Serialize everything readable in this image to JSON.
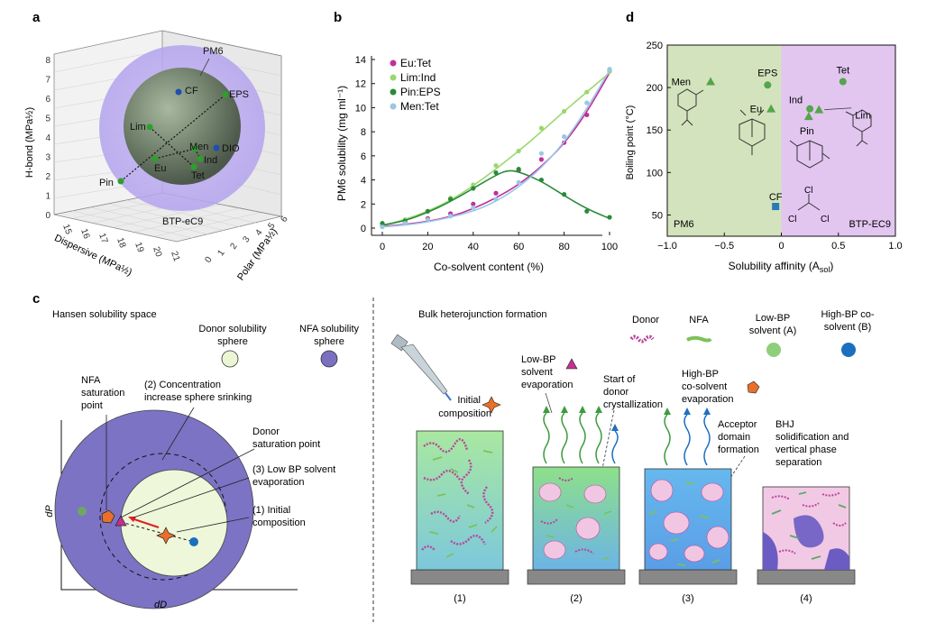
{
  "panels": {
    "a": "a",
    "b": "b",
    "c": "c",
    "d": "d"
  },
  "panel_a": {
    "zlabel": "H-bond (MPa½)",
    "xlabel": "Dispersive (MPa½)",
    "ylabel": "Polar (MPa½)",
    "z_ticks": [
      "0",
      "1",
      "2",
      "3",
      "4",
      "5",
      "6",
      "7",
      "8"
    ],
    "x_ticks": [
      "15",
      "16",
      "17",
      "18",
      "19",
      "20",
      "21"
    ],
    "y_ticks": [
      "0",
      "1",
      "2",
      "3",
      "4",
      "5",
      "6"
    ],
    "labels": {
      "pm6": "PM6",
      "btp": "BTP-eC9",
      "cf": "CF",
      "eps": "EPS",
      "lim": "Lim",
      "men": "Men",
      "dio": "DIO",
      "ind": "Ind",
      "eu": "Eu",
      "tet": "Tet",
      "pin": "Pin"
    }
  },
  "chart_data": {
    "type": "scatter",
    "title": "",
    "xlabel": "Co-solvent content (%)",
    "ylabel": "PM6 solubility (mg ml⁻¹)",
    "xlim": [
      0,
      100
    ],
    "ylim": [
      0,
      14
    ],
    "x_ticks": [
      "0",
      "20",
      "40",
      "60",
      "80",
      "100"
    ],
    "y_ticks": [
      "0",
      "2",
      "4",
      "6",
      "8",
      "10",
      "12",
      "14"
    ],
    "legend_position": "top-left",
    "series": [
      {
        "name": "Eu:Tet",
        "color": "#c0309a",
        "points": [
          [
            0,
            0.2
          ],
          [
            10,
            0.5
          ],
          [
            20,
            0.8
          ],
          [
            30,
            1.2
          ],
          [
            40,
            2.0
          ],
          [
            50,
            2.9
          ],
          [
            60,
            4.8
          ],
          [
            70,
            5.7
          ],
          [
            80,
            7.1
          ],
          [
            90,
            9.4
          ],
          [
            100,
            13.1
          ]
        ],
        "fit": [
          [
            0,
            0.15
          ],
          [
            10,
            0.3
          ],
          [
            20,
            0.55
          ],
          [
            30,
            0.95
          ],
          [
            40,
            1.6
          ],
          [
            50,
            2.5
          ],
          [
            60,
            3.6
          ],
          [
            70,
            5.1
          ],
          [
            80,
            7.0
          ],
          [
            90,
            9.6
          ],
          [
            100,
            12.9
          ]
        ]
      },
      {
        "name": "Lim:Ind",
        "color": "#9ad86e",
        "points": [
          [
            0,
            0.3
          ],
          [
            10,
            0.7
          ],
          [
            20,
            1.4
          ],
          [
            30,
            2.5
          ],
          [
            40,
            3.6
          ],
          [
            50,
            5.2
          ],
          [
            60,
            6.4
          ],
          [
            70,
            8.3
          ],
          [
            80,
            9.7
          ],
          [
            90,
            11.3
          ],
          [
            100,
            13.0
          ]
        ],
        "fit": [
          [
            0,
            0.2
          ],
          [
            10,
            0.7
          ],
          [
            20,
            1.4
          ],
          [
            30,
            2.3
          ],
          [
            40,
            3.5
          ],
          [
            50,
            4.9
          ],
          [
            60,
            6.4
          ],
          [
            70,
            8.0
          ],
          [
            80,
            9.7
          ],
          [
            90,
            11.3
          ],
          [
            100,
            12.9
          ]
        ]
      },
      {
        "name": "Pin:EPS",
        "color": "#2a8a3a",
        "points": [
          [
            0,
            0.4
          ],
          [
            10,
            0.6
          ],
          [
            20,
            1.4
          ],
          [
            30,
            2.4
          ],
          [
            40,
            3.3
          ],
          [
            50,
            4.6
          ],
          [
            60,
            4.9
          ],
          [
            70,
            4.0
          ],
          [
            80,
            2.8
          ],
          [
            90,
            1.4
          ],
          [
            100,
            0.9
          ]
        ],
        "fit": [
          [
            0,
            0.25
          ],
          [
            10,
            0.6
          ],
          [
            20,
            1.3
          ],
          [
            30,
            2.2
          ],
          [
            40,
            3.3
          ],
          [
            50,
            4.4
          ],
          [
            55,
            4.8
          ],
          [
            60,
            4.7
          ],
          [
            70,
            3.9
          ],
          [
            80,
            2.7
          ],
          [
            90,
            1.6
          ],
          [
            100,
            0.8
          ]
        ]
      },
      {
        "name": "Men:Tet",
        "color": "#9cc6e6",
        "points": [
          [
            0,
            0.1
          ],
          [
            10,
            0.4
          ],
          [
            20,
            0.7
          ],
          [
            30,
            1.0
          ],
          [
            40,
            1.7
          ],
          [
            50,
            2.4
          ],
          [
            60,
            3.8
          ],
          [
            70,
            6.2
          ],
          [
            80,
            7.6
          ],
          [
            90,
            10.4
          ],
          [
            100,
            13.2
          ]
        ],
        "fit": [
          [
            0,
            0.1
          ],
          [
            10,
            0.25
          ],
          [
            20,
            0.5
          ],
          [
            30,
            0.9
          ],
          [
            40,
            1.4
          ],
          [
            50,
            2.2
          ],
          [
            60,
            3.4
          ],
          [
            70,
            5.0
          ],
          [
            80,
            7.1
          ],
          [
            90,
            9.9
          ],
          [
            100,
            13.1
          ]
        ]
      }
    ]
  },
  "panel_d": {
    "xlabel": "Solubility affinity (A",
    "xlabel_sub": "sol",
    "xlabel_end": ")",
    "ylabel": "Boiling point (°C)",
    "xlim": [
      -1.0,
      1.0
    ],
    "ylim": [
      25,
      250
    ],
    "x_ticks": [
      "−1.0",
      "−0.5",
      "0",
      "0.5",
      "1.0"
    ],
    "y_ticks": [
      "50",
      "100",
      "150",
      "200",
      "250"
    ],
    "region_left": "PM6",
    "region_right": "BTP-EC9",
    "left_color": "#d3e3bd",
    "right_color": "#e2c6f0",
    "points": [
      {
        "label": "Men",
        "x": -0.62,
        "y": 207,
        "shape": "triangle",
        "color": "#55a54a"
      },
      {
        "label": "EPS",
        "x": -0.12,
        "y": 203,
        "shape": "circle",
        "color": "#55a54a"
      },
      {
        "label": "Eu",
        "x": -0.09,
        "y": 175,
        "shape": "triangle",
        "color": "#55a54a"
      },
      {
        "label": "Tet",
        "x": 0.54,
        "y": 207,
        "shape": "circle",
        "color": "#55a54a"
      },
      {
        "label": "Ind",
        "x": 0.25,
        "y": 175,
        "shape": "circle",
        "color": "#55a54a"
      },
      {
        "label": "Lim",
        "x": 0.33,
        "y": 174,
        "shape": "triangle",
        "color": "#55a54a"
      },
      {
        "label": "Pin",
        "x": 0.24,
        "y": 166,
        "shape": "triangle",
        "color": "#55a54a"
      },
      {
        "label": "CF",
        "x": -0.05,
        "y": 60,
        "shape": "square",
        "color": "#2a7ab8"
      }
    ],
    "cl_labels": [
      "Cl",
      "Cl",
      "Cl"
    ]
  },
  "panel_c": {
    "hansen_title": "Hansen solubility space",
    "donor_sphere": [
      "Donor solubility",
      "sphere"
    ],
    "nfa_sphere": [
      "NFA solubility",
      "sphere"
    ],
    "nfa_sat": [
      "NFA",
      "saturation",
      "point"
    ],
    "conc_increase": [
      "(2) Concentration",
      "increase sphere srinking"
    ],
    "donor_sat": [
      "Donor",
      "saturation point"
    ],
    "low_bp_evap": [
      "(3) Low BP solvent",
      "evaporation"
    ],
    "initial_comp": [
      "(1) Initial",
      "composition"
    ],
    "axis_dp": "dP",
    "axis_dd": "dD",
    "bhj_title": "Bulk heterojunction formation",
    "legend_donor": "Donor",
    "legend_nfa": "NFA",
    "legend_lowbp": [
      "Low-BP",
      "solvent (A)"
    ],
    "legend_highbp": [
      "High-BP co-",
      "solvent (B)"
    ],
    "initial": [
      "Initial",
      "composition"
    ],
    "lowbp_evap": [
      "Low-BP",
      "solvent",
      "evaporation"
    ],
    "start_donor": [
      "Start of",
      "donor",
      "crystallization"
    ],
    "highbp_evap": [
      "High-BP",
      "co-solvent",
      "evaporation"
    ],
    "acceptor": [
      "Acceptor",
      "domain",
      "formation"
    ],
    "bhj_sol": [
      "BHJ",
      "solidification and",
      "vertical phase",
      "separation"
    ],
    "steps": [
      "(1)",
      "(2)",
      "(3)",
      "(4)"
    ]
  }
}
